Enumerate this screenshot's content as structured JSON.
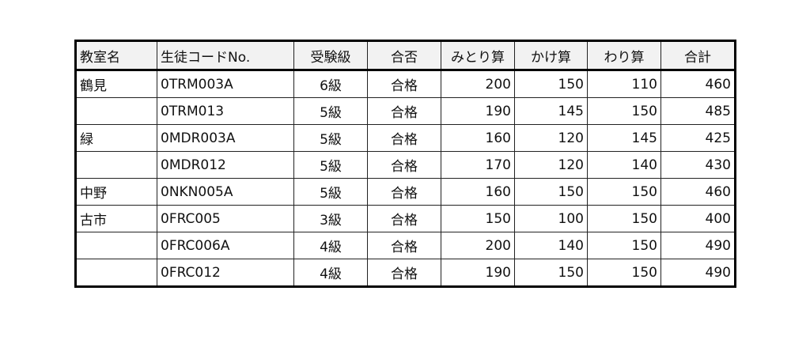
{
  "headers": [
    "教室名",
    "生徒コードNo.",
    "受験級",
    "合否",
    "みとり算",
    "かけ算",
    "わり算",
    "合計"
  ],
  "rows": [
    [
      "鶴見",
      "0TRM003A",
      "6級",
      "合格",
      "200",
      "150",
      "110",
      "460"
    ],
    [
      "",
      "0TRM013",
      "5級",
      "合格",
      "190",
      "145",
      "150",
      "485"
    ],
    [
      "緑",
      "0MDR003A",
      "5級",
      "合格",
      "160",
      "120",
      "145",
      "425"
    ],
    [
      "",
      "0MDR012",
      "5級",
      "合格",
      "170",
      "120",
      "140",
      "430"
    ],
    [
      "中野",
      "0NKN005A",
      "5級",
      "合格",
      "160",
      "150",
      "150",
      "460"
    ],
    [
      "古市",
      "0FRC005",
      "3級",
      "合格",
      "150",
      "100",
      "150",
      "400"
    ],
    [
      "",
      "0FRC006A",
      "4級",
      "合格",
      "200",
      "140",
      "150",
      "490"
    ],
    [
      "",
      "0FRC012",
      "4級",
      "合格",
      "190",
      "150",
      "150",
      "490"
    ]
  ]
}
